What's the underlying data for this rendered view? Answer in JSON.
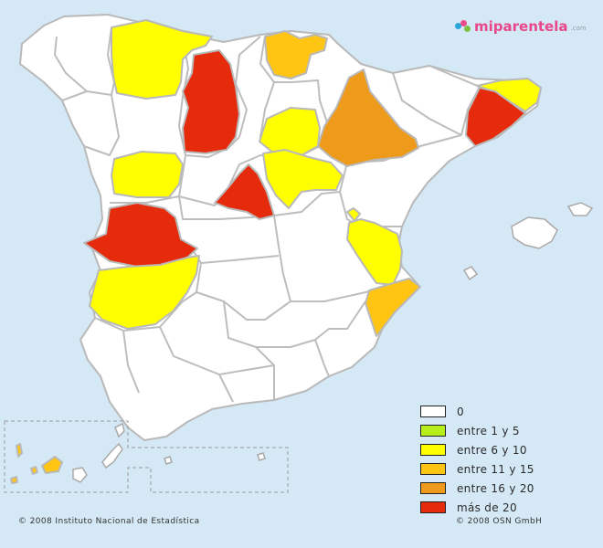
{
  "brand": {
    "text_main": "miparentela",
    "text_suffix": ".com"
  },
  "colors": {
    "none": "#ffffff",
    "c1_5": "#b5ee1a",
    "c6_10": "#ffff00",
    "c11_15": "#ffc512",
    "c16_20": "#ee9b1c",
    "c20p": "#e62a0c",
    "sea": "#d5e8f5"
  },
  "legend": [
    {
      "label": "0",
      "color": "#ffffff"
    },
    {
      "label": "entre 1 y 5",
      "color": "#b5ee1a"
    },
    {
      "label": "entre 6 y 10",
      "color": "#ffff00"
    },
    {
      "label": "entre 11 y 15",
      "color": "#ffc512"
    },
    {
      "label": "entre 16 y 20",
      "color": "#ee9b1c"
    },
    {
      "label": "más de 20",
      "color": "#e62a0c"
    }
  ],
  "credits": {
    "left": "© 2008 Instituto Nacional de Estadística",
    "right": "© 2008 OSN GmbH"
  }
}
